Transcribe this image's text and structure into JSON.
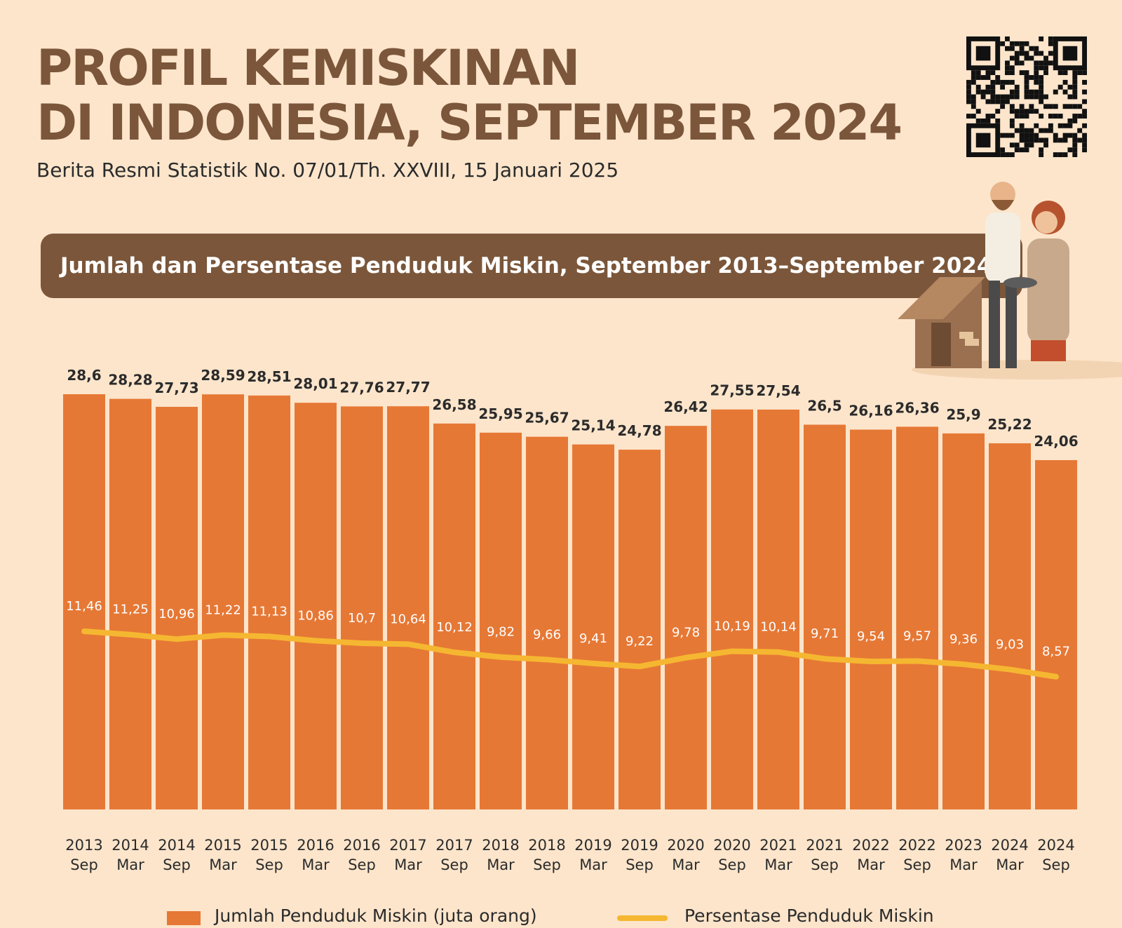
{
  "header": {
    "title": "PROFIL KEMISKINAN\nDI INDONESIA, SEPTEMBER 2024",
    "subtitle": "Berita Resmi Statistik No. 07/01/Th. XXVIII, 15 Januari 2025"
  },
  "banner": {
    "text": "Jumlah dan Persentase Penduduk Miskin, September 2013–September 2024"
  },
  "illustration": {
    "icon": "poor-family-house-illustration"
  },
  "qr_code": {
    "icon": "qr-code-icon"
  },
  "colors": {
    "background": "#FCE5CB",
    "brown": "#7B563A",
    "bar": "#E67835",
    "line": "#F5B731"
  },
  "chart_data": {
    "type": "bar",
    "categories": [
      [
        "2013",
        "Sep"
      ],
      [
        "2014",
        "Mar"
      ],
      [
        "2014",
        "Sep"
      ],
      [
        "2015",
        "Mar"
      ],
      [
        "2015",
        "Sep"
      ],
      [
        "2016",
        "Mar"
      ],
      [
        "2016",
        "Sep"
      ],
      [
        "2017",
        "Mar"
      ],
      [
        "2017",
        "Sep"
      ],
      [
        "2018",
        "Mar"
      ],
      [
        "2018",
        "Sep"
      ],
      [
        "2019",
        "Mar"
      ],
      [
        "2019",
        "Sep"
      ],
      [
        "2020",
        "Mar"
      ],
      [
        "2020",
        "Sep"
      ],
      [
        "2021",
        "Mar"
      ],
      [
        "2021",
        "Sep"
      ],
      [
        "2022",
        "Mar"
      ],
      [
        "2022",
        "Sep"
      ],
      [
        "2023",
        "Mar"
      ],
      [
        "2024",
        "Mar"
      ],
      [
        "2024",
        "Sep"
      ]
    ],
    "series": [
      {
        "name": "Jumlah Penduduk Miskin (juta orang)",
        "type": "bar",
        "values": [
          28.6,
          28.28,
          27.73,
          28.59,
          28.51,
          28.01,
          27.76,
          27.77,
          26.58,
          25.95,
          25.67,
          25.14,
          24.78,
          26.42,
          27.55,
          27.54,
          26.5,
          26.16,
          26.36,
          25.9,
          25.22,
          24.06
        ],
        "labels": [
          "28,6",
          "28,28",
          "27,73",
          "28,59",
          "28,51",
          "28,01",
          "27,76",
          "27,77",
          "26,58",
          "25,95",
          "25,67",
          "25,14",
          "24,78",
          "26,42",
          "27,55",
          "27,54",
          "26,5",
          "26,16",
          "26,36",
          "25,9",
          "25,22",
          "24,06"
        ]
      },
      {
        "name": "Persentase Penduduk Miskin",
        "type": "line",
        "values": [
          11.46,
          11.25,
          10.96,
          11.22,
          11.13,
          10.86,
          10.7,
          10.64,
          10.12,
          9.82,
          9.66,
          9.41,
          9.22,
          9.78,
          10.19,
          10.14,
          9.71,
          9.54,
          9.57,
          9.36,
          9.03,
          8.57
        ],
        "labels": [
          "11,46",
          "11,25",
          "10,96",
          "11,22",
          "11,13",
          "10,86",
          "10,7",
          "10,64",
          "10,12",
          "9,82",
          "9,66",
          "9,41",
          "9,22",
          "9,78",
          "10,19",
          "10,14",
          "9,71",
          "9,54",
          "9,57",
          "9,36",
          "9,03",
          "8,57"
        ]
      }
    ],
    "legend_position": "bottom",
    "grid": false
  }
}
